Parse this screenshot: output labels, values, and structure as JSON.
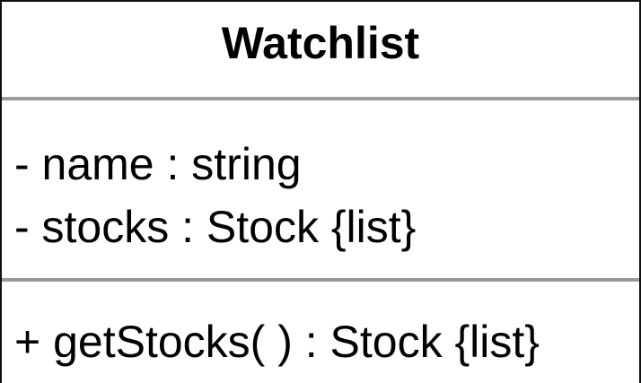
{
  "class": {
    "name": "Watchlist",
    "attributes": [
      "- name : string",
      "- stocks : Stock {list}"
    ],
    "operations": [
      "+ getStocks( ) : Stock {list}"
    ]
  }
}
